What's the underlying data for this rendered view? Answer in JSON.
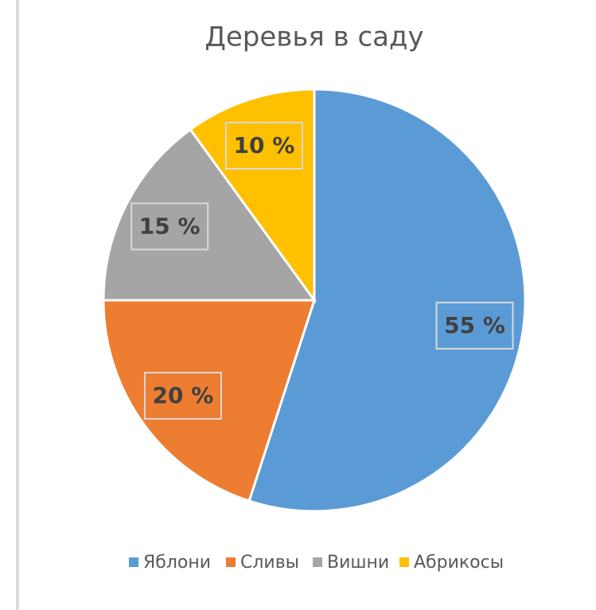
{
  "chart_data": {
    "type": "pie",
    "title": "Деревья в саду",
    "categories": [
      "Яблони",
      "Сливы",
      "Вишни",
      "Абрикосы"
    ],
    "values": [
      55,
      20,
      15,
      10
    ],
    "value_labels": [
      "55 %",
      "20 %",
      "15 %",
      "10 %"
    ],
    "colors": [
      "#5b9bd5",
      "#ed7d31",
      "#a5a5a5",
      "#ffc000"
    ],
    "legend": "bottom"
  }
}
